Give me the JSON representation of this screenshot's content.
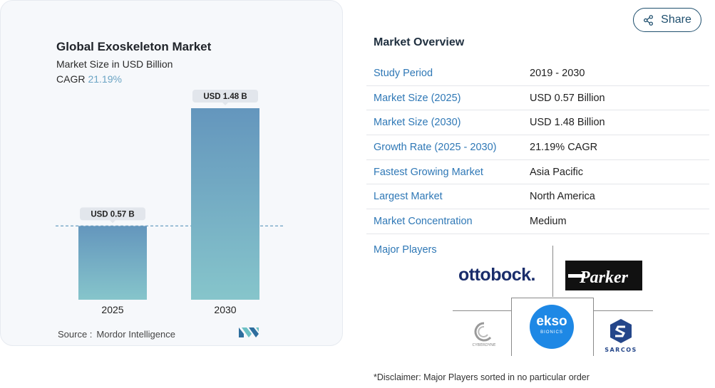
{
  "card": {
    "title": "Global Exoskeleton Market",
    "subtitle": "Market Size in USD Billion",
    "cagr_label": "CAGR",
    "cagr_value": "21.19%",
    "source_label": "Source :",
    "source_value": "Mordor Intelligence"
  },
  "chart_data": {
    "type": "bar",
    "title": "Global Exoskeleton Market",
    "subtitle": "Market Size in USD Billion",
    "categories": [
      "2025",
      "2030"
    ],
    "values": [
      0.57,
      1.48
    ],
    "data_labels": [
      "USD 0.57 B",
      "USD 1.48 B"
    ],
    "ylim": [
      0,
      1.48
    ],
    "reference_line_value": 0.57,
    "colors": {
      "bar_top": "#6496bd",
      "bar_bottom": "#86c5cb",
      "label_bg": "#e2e6ec",
      "dashed_line": "#6aa0c2"
    }
  },
  "share": {
    "label": "Share",
    "icon": "share-icon"
  },
  "overview": {
    "title": "Market Overview",
    "rows": [
      {
        "key": "Study Period",
        "value": "2019 - 2030"
      },
      {
        "key": "Market Size (2025)",
        "value": "USD 0.57 Billion"
      },
      {
        "key": "Market Size (2030)",
        "value": "USD 1.48 Billion"
      },
      {
        "key": "Growth Rate (2025 - 2030)",
        "value": "21.19% CAGR"
      },
      {
        "key": "Fastest Growing Market",
        "value": "Asia Pacific"
      },
      {
        "key": "Largest Market",
        "value": "North America"
      },
      {
        "key": "Market Concentration",
        "value": "Medium"
      }
    ]
  },
  "players": {
    "label": "Major Players",
    "logos": {
      "ottobock": "ottobock.",
      "parker": "Parker",
      "cyberdyne": "CYBERDYNE",
      "ekso": "ekso",
      "ekso_sub": "BIONICS",
      "sarcos": "SARCOS"
    }
  },
  "disclaimer": "*Disclaimer: Major Players sorted in no particular order",
  "colors": {
    "accent": "#2f78b6",
    "dark_blue": "#1f4f6e"
  }
}
